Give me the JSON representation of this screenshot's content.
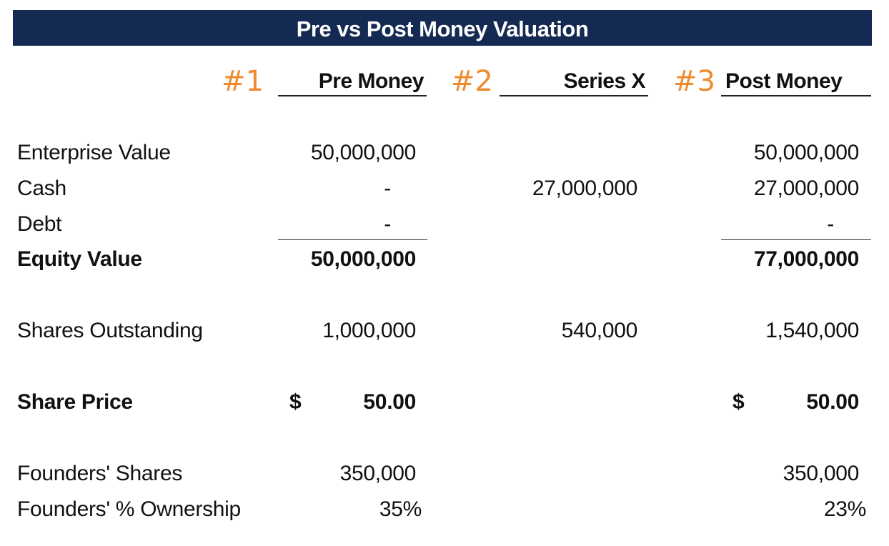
{
  "title": "Pre vs Post Money Valuation",
  "steps": [
    "#1",
    "#2",
    "#3"
  ],
  "columns": {
    "pre": "Pre Money",
    "series": "Series X",
    "post": "Post Money"
  },
  "rows": {
    "enterprise_value": {
      "label": "Enterprise Value",
      "pre": "50,000,000",
      "post": "50,000,000"
    },
    "cash": {
      "label": "Cash",
      "pre": "-",
      "series": "27,000,000",
      "post": "27,000,000"
    },
    "debt": {
      "label": "Debt",
      "pre": "-",
      "post": "-"
    },
    "equity_value": {
      "label": "Equity Value",
      "pre": "50,000,000",
      "post": "77,000,000"
    },
    "shares_outstanding": {
      "label": "Shares Outstanding",
      "pre": "1,000,000",
      "series": "540,000",
      "post": "1,540,000"
    },
    "share_price": {
      "label": "Share Price",
      "currency": "$",
      "pre": "50.00",
      "post": "50.00"
    },
    "founders_shares": {
      "label": "Founders' Shares",
      "pre": "350,000",
      "post": "350,000"
    },
    "founders_ownership": {
      "label": "Founders' % Ownership",
      "pre": "35%",
      "post": "23%"
    }
  }
}
